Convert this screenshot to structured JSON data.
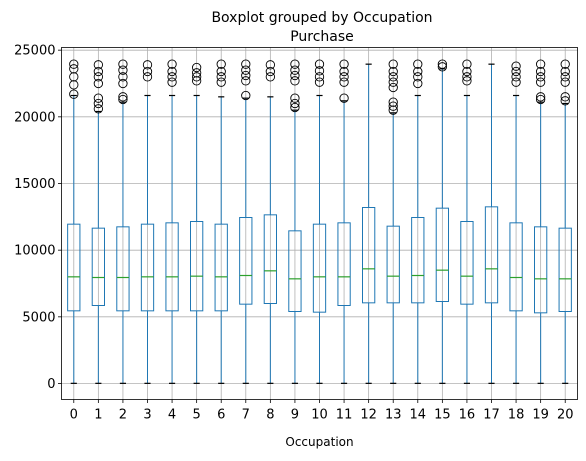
{
  "chart_data": {
    "type": "boxplot",
    "title": "Boxplot grouped by Occupation",
    "subtitle": "Purchase",
    "xlabel": "Occupation",
    "ylabel": "",
    "ylim": [
      -1200,
      25200
    ],
    "yticks": [
      0,
      5000,
      10000,
      15000,
      20000,
      25000
    ],
    "ytick_labels": [
      "0",
      "5000",
      "10000",
      "15000",
      "20000",
      "25000"
    ],
    "grid": true,
    "colors": {
      "box": "#1f77b4",
      "median": "#2ca02c",
      "grid": "#b0b0b0",
      "axes": "#000000"
    },
    "categories": [
      "0",
      "1",
      "2",
      "3",
      "4",
      "5",
      "6",
      "7",
      "8",
      "9",
      "10",
      "11",
      "12",
      "13",
      "14",
      "15",
      "16",
      "17",
      "18",
      "19",
      "20"
    ],
    "boxes": [
      {
        "q1": 5450,
        "median": 8000,
        "q3": 11950,
        "whislo": 12,
        "whishi": 21600,
        "outliers": [
          21700,
          22400,
          23000,
          23600,
          23950
        ]
      },
      {
        "q1": 5850,
        "median": 7950,
        "q3": 11650,
        "whislo": 12,
        "whishi": 20400,
        "outliers": [
          20600,
          21000,
          21400,
          22500,
          23000,
          23400,
          23900
        ]
      },
      {
        "q1": 5450,
        "median": 7950,
        "q3": 11750,
        "whislo": 12,
        "whishi": 21100,
        "outliers": [
          21300,
          21500,
          22500,
          23000,
          23500,
          23950
        ]
      },
      {
        "q1": 5450,
        "median": 8000,
        "q3": 11950,
        "whislo": 12,
        "whishi": 21600,
        "outliers": [
          23000,
          23400,
          23900
        ]
      },
      {
        "q1": 5450,
        "median": 8000,
        "q3": 12050,
        "whislo": 12,
        "whishi": 21600,
        "outliers": [
          22600,
          23000,
          23400,
          23950
        ]
      },
      {
        "q1": 5450,
        "median": 8050,
        "q3": 12150,
        "whislo": 12,
        "whishi": 21600,
        "outliers": [
          22700,
          23000,
          23300,
          23700
        ]
      },
      {
        "q1": 5450,
        "median": 8000,
        "q3": 11950,
        "whislo": 12,
        "whishi": 21500,
        "outliers": [
          22600,
          23000,
          23400,
          23950
        ]
      },
      {
        "q1": 5950,
        "median": 8100,
        "q3": 12450,
        "whislo": 12,
        "whishi": 21400,
        "outliers": [
          21600,
          22700,
          23100,
          23500,
          23950
        ]
      },
      {
        "q1": 6000,
        "median": 8450,
        "q3": 12650,
        "whislo": 12,
        "whishi": 21500,
        "outliers": [
          23000,
          23400,
          23900
        ]
      },
      {
        "q1": 5400,
        "median": 7850,
        "q3": 11450,
        "whislo": 12,
        "whishi": 20500,
        "outliers": [
          20700,
          21000,
          21400,
          22700,
          23100,
          23500,
          23950
        ]
      },
      {
        "q1": 5350,
        "median": 8000,
        "q3": 11950,
        "whislo": 12,
        "whishi": 21600,
        "outliers": [
          22600,
          23000,
          23450,
          23950
        ]
      },
      {
        "q1": 5850,
        "median": 8000,
        "q3": 12050,
        "whislo": 12,
        "whishi": 21200,
        "outliers": [
          21400,
          22600,
          23000,
          23400,
          23950
        ]
      },
      {
        "q1": 6050,
        "median": 8600,
        "q3": 13200,
        "whislo": 12,
        "whishi": 23950,
        "outliers": []
      },
      {
        "q1": 6050,
        "median": 8050,
        "q3": 11800,
        "whislo": 12,
        "whishi": 20300,
        "outliers": [
          20500,
          20800,
          21100,
          22200,
          22600,
          23000,
          23400,
          23950
        ]
      },
      {
        "q1": 6050,
        "median": 8100,
        "q3": 12450,
        "whislo": 12,
        "whishi": 21600,
        "outliers": [
          22500,
          23000,
          23400,
          23950
        ]
      },
      {
        "q1": 6150,
        "median": 8500,
        "q3": 13150,
        "whislo": 12,
        "whishi": 23600,
        "outliers": [
          23750,
          23950
        ]
      },
      {
        "q1": 5950,
        "median": 8050,
        "q3": 12150,
        "whislo": 12,
        "whishi": 21600,
        "outliers": [
          22700,
          23000,
          23400,
          23950
        ]
      },
      {
        "q1": 6050,
        "median": 8600,
        "q3": 13250,
        "whislo": 12,
        "whishi": 23950,
        "outliers": []
      },
      {
        "q1": 5450,
        "median": 7950,
        "q3": 12050,
        "whislo": 12,
        "whishi": 21600,
        "outliers": [
          22600,
          23000,
          23400,
          23800
        ]
      },
      {
        "q1": 5300,
        "median": 7850,
        "q3": 11750,
        "whislo": 12,
        "whishi": 21100,
        "outliers": [
          21300,
          21500,
          22600,
          23000,
          23400,
          23950
        ]
      },
      {
        "q1": 5400,
        "median": 7850,
        "q3": 11650,
        "whislo": 12,
        "whishi": 21000,
        "outliers": [
          21200,
          21500,
          22600,
          23000,
          23400,
          23950
        ]
      }
    ]
  }
}
